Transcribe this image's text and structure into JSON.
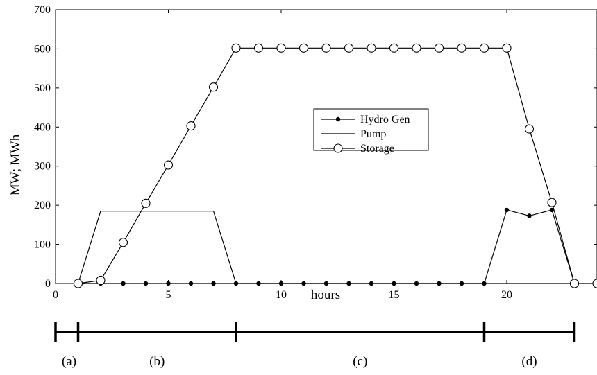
{
  "chart_data": {
    "type": "line",
    "xlabel": "hours",
    "ylabel": "MW; MWh",
    "xlim": [
      0,
      24
    ],
    "ylim": [
      0,
      700
    ],
    "xticks": [
      0,
      5,
      10,
      15,
      20
    ],
    "yticks": [
      0,
      100,
      200,
      300,
      400,
      500,
      600,
      700
    ],
    "grid": false,
    "legend_position": "center",
    "series": [
      {
        "name": "Hydro Gen",
        "marker": "filled-dot",
        "points": [
          [
            1,
            0
          ],
          [
            2,
            0
          ],
          [
            3,
            0
          ],
          [
            4,
            0
          ],
          [
            5,
            0
          ],
          [
            6,
            0
          ],
          [
            7,
            0
          ],
          [
            8,
            0
          ],
          [
            9,
            0
          ],
          [
            10,
            0
          ],
          [
            11,
            0
          ],
          [
            12,
            0
          ],
          [
            13,
            0
          ],
          [
            14,
            0
          ],
          [
            15,
            0
          ],
          [
            16,
            0
          ],
          [
            17,
            0
          ],
          [
            18,
            0
          ],
          [
            19,
            0
          ],
          [
            20,
            188
          ],
          [
            21,
            173
          ],
          [
            22,
            188
          ],
          [
            23,
            0
          ]
        ]
      },
      {
        "name": "Pump",
        "marker": "none",
        "points": [
          [
            1,
            0
          ],
          [
            2,
            185
          ],
          [
            7,
            185
          ],
          [
            8,
            0
          ],
          [
            23,
            0
          ]
        ]
      },
      {
        "name": "Storage",
        "marker": "open-circle",
        "points": [
          [
            1,
            0
          ],
          [
            2,
            8
          ],
          [
            3,
            105
          ],
          [
            4,
            205
          ],
          [
            5,
            303
          ],
          [
            6,
            403
          ],
          [
            7,
            502
          ],
          [
            8,
            602
          ],
          [
            9,
            602
          ],
          [
            10,
            602
          ],
          [
            11,
            602
          ],
          [
            12,
            602
          ],
          [
            13,
            602
          ],
          [
            14,
            602
          ],
          [
            15,
            602
          ],
          [
            16,
            602
          ],
          [
            17,
            602
          ],
          [
            18,
            602
          ],
          [
            19,
            602
          ],
          [
            20,
            602
          ],
          [
            21,
            395
          ],
          [
            22,
            207
          ],
          [
            23,
            0
          ],
          [
            24,
            0
          ]
        ]
      }
    ]
  },
  "phases": {
    "boundaries": [
      0,
      1,
      8,
      19,
      23
    ],
    "labels": [
      "(a)",
      "(b)",
      "(c)",
      "(d)"
    ],
    "label_x": [
      0.6,
      4.5,
      13.5,
      21
    ]
  }
}
